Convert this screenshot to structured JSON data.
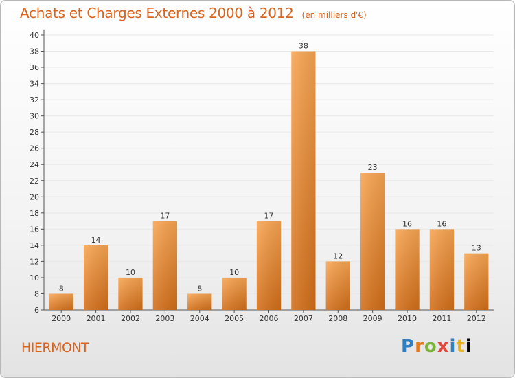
{
  "header": {
    "title": "Achats et Charges Externes 2000 à 2012",
    "subtitle": "(en milliers d'€)"
  },
  "footer": {
    "town": "HIERMONT",
    "logo_letters": [
      "P",
      "r",
      "o",
      "x",
      "i",
      "t",
      "i"
    ]
  },
  "colors": {
    "bar_top": "#f8a552",
    "bar_bottom": "#d26e19",
    "accent": "#d9641e",
    "grid": "#e8e8e8"
  },
  "chart_data": {
    "type": "bar",
    "title": "Achats et Charges Externes 2000 à 2012",
    "subtitle": "(en milliers d'€)",
    "categories": [
      "2000",
      "2001",
      "2002",
      "2003",
      "2004",
      "2005",
      "2006",
      "2007",
      "2008",
      "2009",
      "2010",
      "2011",
      "2012"
    ],
    "values": [
      8,
      14,
      10,
      17,
      8,
      10,
      17,
      38,
      12,
      23,
      16,
      16,
      13
    ],
    "ylim": [
      6,
      40
    ],
    "ytick_step": 2,
    "grid": true
  }
}
